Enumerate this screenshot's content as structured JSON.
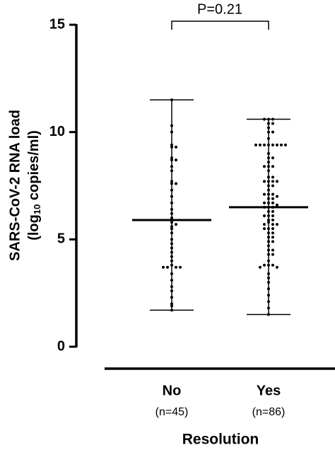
{
  "chart_data": {
    "type": "dotplot",
    "y_label": [
      "SARS-CoV-2 RNA load",
      "(log",
      "10",
      " copies/ml)"
    ],
    "x_label": "Resolution",
    "categories": [
      "No",
      "Yes"
    ],
    "n_labels": [
      "(n=45)",
      "(n=86)"
    ],
    "annotation": "P=0.21",
    "color": "#000000",
    "ylim": [
      0,
      15
    ],
    "yticks": [
      0,
      5,
      10,
      15
    ],
    "medians": [
      5.9,
      6.5
    ],
    "groups": [
      {
        "values": [
          11.5,
          10.3,
          10.0,
          9.4,
          9.3,
          9.3,
          8.8,
          8.7,
          8.7,
          8.4,
          8.2,
          7.7,
          7.6,
          7.6,
          7.3,
          7.0,
          6.7,
          6.4,
          6.2,
          6.0,
          5.9,
          5.8,
          5.7,
          5.6,
          5.5,
          5.3,
          5.0,
          4.8,
          4.6,
          4.4,
          4.2,
          4.0,
          3.8,
          3.7,
          3.7,
          3.7,
          3.7,
          3.4,
          3.1,
          2.8,
          2.6,
          2.3,
          2.0,
          1.9,
          1.7
        ]
      },
      {
        "values": [
          10.6,
          10.6,
          10.6,
          10.4,
          10.4,
          10.2,
          10.0,
          10.0,
          9.7,
          9.4,
          9.4,
          9.4,
          9.4,
          9.4,
          9.4,
          9.4,
          9.4,
          9.0,
          8.8,
          8.8,
          8.6,
          8.4,
          8.4,
          8.4,
          8.2,
          7.9,
          7.9,
          7.7,
          7.7,
          7.7,
          7.7,
          7.5,
          7.5,
          7.3,
          7.1,
          7.1,
          7.1,
          7.0,
          6.9,
          6.9,
          6.7,
          6.7,
          6.7,
          6.6,
          6.5,
          6.5,
          6.5,
          6.3,
          6.3,
          6.1,
          6.1,
          6.1,
          5.9,
          5.9,
          5.8,
          5.7,
          5.7,
          5.7,
          5.5,
          5.5,
          5.5,
          5.3,
          5.3,
          5.1,
          5.1,
          4.9,
          4.9,
          4.7,
          4.5,
          4.5,
          4.3,
          4.3,
          4.0,
          3.8,
          3.8,
          3.8,
          3.7,
          3.7,
          3.4,
          3.2,
          3.0,
          2.7,
          2.4,
          2.1,
          1.8,
          1.5
        ]
      }
    ]
  }
}
